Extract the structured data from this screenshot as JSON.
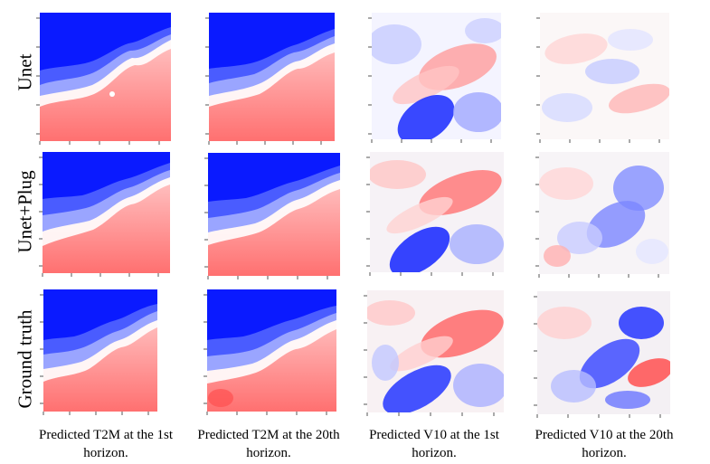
{
  "figure": {
    "rows": [
      {
        "label": "Unet"
      },
      {
        "label": "Unet+Plug"
      },
      {
        "label": "Ground truth"
      }
    ],
    "columns": [
      {
        "caption_line1": "Predicted T2M at the 1st",
        "caption_line2": "horizon.",
        "variable": "T2M",
        "horizon": "1st"
      },
      {
        "caption_line1": "Predicted T2M at the 20th",
        "caption_line2": "horizon.",
        "variable": "T2M",
        "horizon": "20th"
      },
      {
        "caption_line1": "Predicted V10 at the 1st",
        "caption_line2": "horizon.",
        "variable": "V10",
        "horizon": "1st"
      },
      {
        "caption_line1": "Predicted V10 at the 20th",
        "caption_line2": "horizon.",
        "variable": "V10",
        "horizon": "20th"
      }
    ],
    "colormap": {
      "low": "#0a1aff",
      "mid": "#ffffff",
      "high": "#ff6464"
    }
  }
}
